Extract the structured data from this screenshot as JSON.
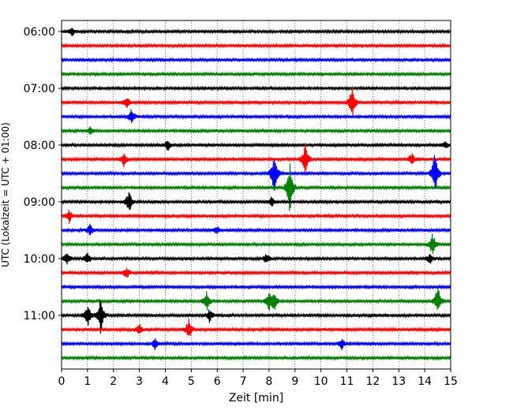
{
  "chart_data": {
    "type": "line",
    "title": "",
    "xlabel": "Zeit  [min]",
    "ylabel": "UTC (Lokalzeit = UTC + 01:00)",
    "xlim": [
      0,
      15
    ],
    "x_ticks": [
      0,
      1,
      2,
      3,
      4,
      5,
      6,
      7,
      8,
      9,
      10,
      11,
      12,
      13,
      14,
      15
    ],
    "x_tick_labels": [
      "0",
      "1",
      "2",
      "3",
      "4",
      "5",
      "6",
      "7",
      "8",
      "9",
      "10",
      "11",
      "12",
      "13",
      "14",
      "15"
    ],
    "y_tick_labels": [
      "06:00",
      "07:00",
      "08:00",
      "09:00",
      "10:00",
      "11:00"
    ],
    "y_tick_traces": [
      0,
      4,
      8,
      12,
      16,
      20
    ],
    "grid": "vertical dotted",
    "legend": "none",
    "trace_interval_min": 15,
    "color_cycle": [
      "#000000",
      "#ff0000",
      "#0000ff",
      "#008000"
    ],
    "series": [
      {
        "start": "06:00",
        "color": "#000000",
        "events": [
          {
            "t": 0.4,
            "a": 0.45
          }
        ]
      },
      {
        "start": "06:15",
        "color": "#ff0000",
        "events": []
      },
      {
        "start": "06:30",
        "color": "#0000ff",
        "events": []
      },
      {
        "start": "06:45",
        "color": "#008000",
        "events": []
      },
      {
        "start": "07:00",
        "color": "#000000",
        "events": []
      },
      {
        "start": "07:15",
        "color": "#ff0000",
        "events": [
          {
            "t": 2.5,
            "a": 0.6
          },
          {
            "t": 11.2,
            "a": 1.5
          }
        ]
      },
      {
        "start": "07:30",
        "color": "#0000ff",
        "events": [
          {
            "t": 2.7,
            "a": 0.7
          }
        ]
      },
      {
        "start": "07:45",
        "color": "#008000",
        "events": [
          {
            "t": 1.1,
            "a": 0.4
          }
        ]
      },
      {
        "start": "08:00",
        "color": "#000000",
        "events": [
          {
            "t": 4.1,
            "a": 0.5
          },
          {
            "t": 14.8,
            "a": 0.4
          }
        ]
      },
      {
        "start": "08:15",
        "color": "#ff0000",
        "events": [
          {
            "t": 2.4,
            "a": 0.7
          },
          {
            "t": 9.4,
            "a": 1.5
          },
          {
            "t": 13.5,
            "a": 0.6
          }
        ]
      },
      {
        "start": "08:30",
        "color": "#0000ff",
        "events": [
          {
            "t": 8.2,
            "a": 2.0
          },
          {
            "t": 14.4,
            "a": 2.4
          }
        ]
      },
      {
        "start": "08:45",
        "color": "#008000",
        "events": [
          {
            "t": 8.8,
            "a": 2.8
          }
        ]
      },
      {
        "start": "09:00",
        "color": "#000000",
        "events": [
          {
            "t": 2.6,
            "a": 1.2
          },
          {
            "t": 8.1,
            "a": 0.5
          }
        ]
      },
      {
        "start": "09:15",
        "color": "#ff0000",
        "events": [
          {
            "t": 0.3,
            "a": 0.6
          }
        ]
      },
      {
        "start": "09:30",
        "color": "#0000ff",
        "events": [
          {
            "t": 1.1,
            "a": 0.6
          },
          {
            "t": 6.0,
            "a": 0.4
          }
        ]
      },
      {
        "start": "09:45",
        "color": "#008000",
        "events": [
          {
            "t": 14.3,
            "a": 1.2
          }
        ]
      },
      {
        "start": "10:00",
        "color": "#000000",
        "events": [
          {
            "t": 0.2,
            "a": 0.6
          },
          {
            "t": 1.0,
            "a": 0.6
          },
          {
            "t": 7.9,
            "a": 0.5
          },
          {
            "t": 14.2,
            "a": 0.5
          }
        ]
      },
      {
        "start": "10:15",
        "color": "#ff0000",
        "events": [
          {
            "t": 2.5,
            "a": 0.6
          }
        ]
      },
      {
        "start": "10:30",
        "color": "#0000ff",
        "events": []
      },
      {
        "start": "10:45",
        "color": "#008000",
        "events": [
          {
            "t": 5.6,
            "a": 0.9
          },
          {
            "t": 8.0,
            "a": 0.9
          },
          {
            "t": 8.2,
            "a": 0.9
          },
          {
            "t": 14.5,
            "a": 1.5
          }
        ]
      },
      {
        "start": "11:00",
        "color": "#000000",
        "events": [
          {
            "t": 1.0,
            "a": 1.2
          },
          {
            "t": 1.5,
            "a": 1.8
          },
          {
            "t": 5.7,
            "a": 0.6
          }
        ]
      },
      {
        "start": "11:15",
        "color": "#ff0000",
        "events": [
          {
            "t": 3.0,
            "a": 0.5
          },
          {
            "t": 4.9,
            "a": 1.0
          }
        ]
      },
      {
        "start": "11:30",
        "color": "#0000ff",
        "events": [
          {
            "t": 3.6,
            "a": 0.5
          },
          {
            "t": 10.8,
            "a": 0.5
          }
        ]
      },
      {
        "start": "11:45",
        "color": "#008000",
        "events": []
      }
    ]
  }
}
